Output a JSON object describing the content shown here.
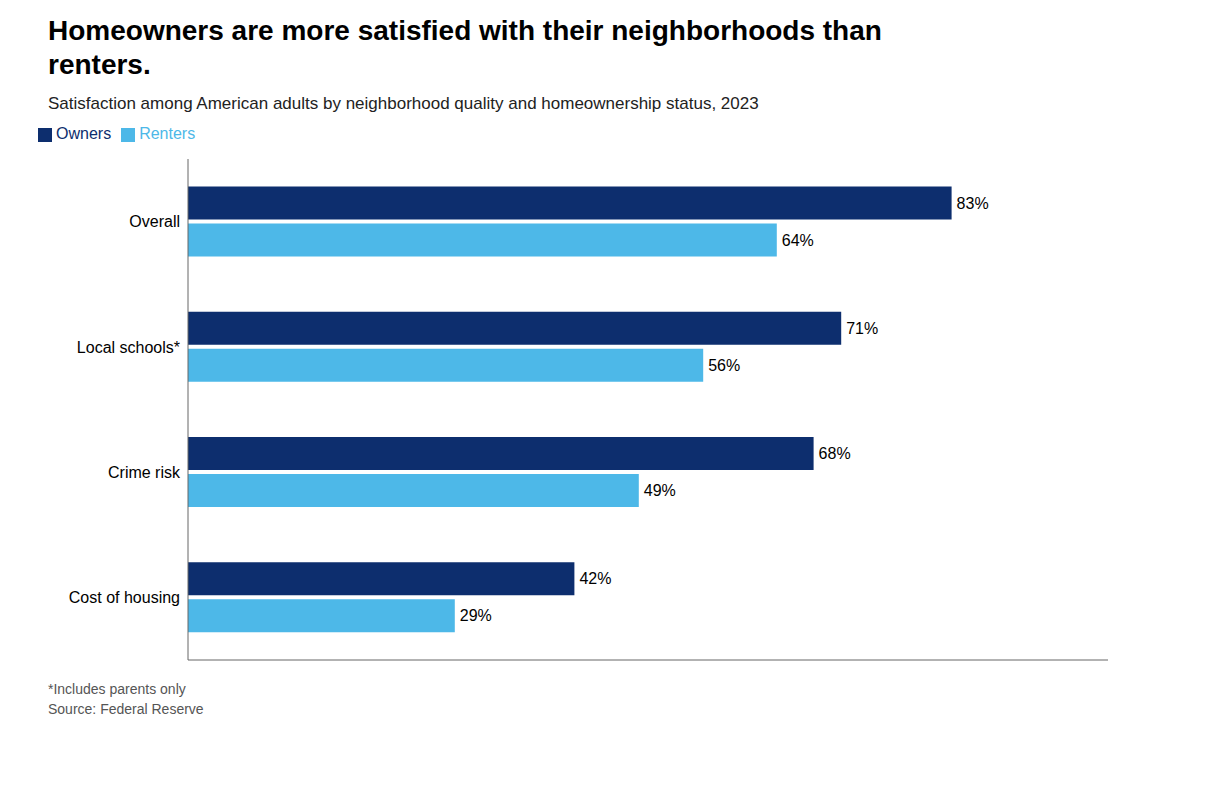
{
  "chart_data": {
    "type": "bar",
    "orientation": "horizontal",
    "title": "Homeowners are more satisfied with their neighborhoods than renters.",
    "subtitle": "Satisfaction among American adults by neighborhood quality and homeownership status, 2023",
    "categories": [
      "Overall",
      "Local schools*",
      "Crime risk",
      "Cost of housing"
    ],
    "series": [
      {
        "name": "Owners",
        "color": "#0d2e6e",
        "values": [
          83,
          71,
          68,
          42
        ],
        "value_labels": [
          "83%",
          "71%",
          "68%",
          "42%"
        ]
      },
      {
        "name": "Renters",
        "color": "#4db8e8",
        "values": [
          64,
          56,
          49,
          29
        ],
        "value_labels": [
          "64%",
          "56%",
          "49%",
          "29%"
        ]
      }
    ],
    "xlim": [
      0,
      100
    ],
    "data_labels": true,
    "tick_labels": "y",
    "grid": false,
    "legend": "upper left",
    "annotations": [
      "*Includes parents only",
      "Source: Federal Reserve"
    ]
  }
}
